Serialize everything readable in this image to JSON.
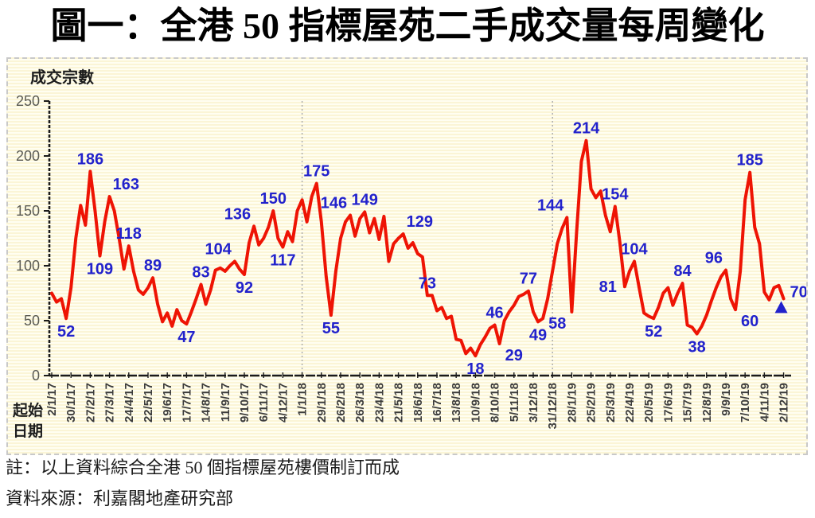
{
  "title": "圖一：全港 50 指標屋苑二手成交量每周變化",
  "notes": {
    "line1": "註：以上資料綜合全港 50 個指標屋苑樓價制訂而成",
    "line2": "資料來源：利嘉閣地產研究部"
  },
  "chart_data": {
    "type": "line",
    "title": "圖一：全港 50 指標屋苑二手成交量每周變化",
    "ylabel": "成交宗數",
    "xlabel": "起始日期",
    "xlabel_lines": [
      "起始",
      "日期"
    ],
    "ylim": [
      0,
      250
    ],
    "yticks": [
      0,
      50,
      100,
      150,
      200,
      250
    ],
    "grid": "off",
    "legend": "none",
    "x_weeks_per_tick": 4,
    "x_tick_labels": [
      "2/1/17",
      "30/1/17",
      "27/2/17",
      "27/3/17",
      "24/4/17",
      "22/5/17",
      "19/6/17",
      "17/7/17",
      "14/8/17",
      "11/9/17",
      "9/10/17",
      "6/11/17",
      "4/12/17",
      "1/1/18",
      "29/1/18",
      "26/2/18",
      "26/3/18",
      "23/4/18",
      "21/5/18",
      "18/6/18",
      "16/7/18",
      "13/8/18",
      "10/9/18",
      "8/10/18",
      "5/11/18",
      "3/12/18",
      "31/12/18",
      "28/1/19",
      "25/2/19",
      "25/3/19",
      "22/4/19",
      "20/5/19",
      "17/6/19",
      "15/7/19",
      "12/8/19",
      "9/9/19",
      "7/10/19",
      "4/11/19",
      "2/12/19"
    ],
    "year_divider_weeks": [
      52,
      104
    ],
    "values": [
      75,
      67,
      70,
      52,
      80,
      125,
      155,
      137,
      186,
      150,
      109,
      140,
      163,
      150,
      125,
      97,
      118,
      95,
      78,
      74,
      80,
      89,
      65,
      49,
      57,
      45,
      60,
      50,
      47,
      58,
      70,
      83,
      65,
      78,
      96,
      98,
      95,
      100,
      104,
      97,
      92,
      121,
      136,
      119,
      125,
      135,
      150,
      125,
      117,
      131,
      122,
      150,
      160,
      140,
      163,
      175,
      140,
      90,
      55,
      95,
      125,
      140,
      146,
      127,
      143,
      149,
      130,
      143,
      124,
      145,
      104,
      120,
      125,
      129,
      116,
      121,
      111,
      108,
      73,
      73,
      59,
      62,
      52,
      54,
      33,
      32,
      20,
      25,
      18,
      28,
      35,
      43,
      46,
      29,
      50,
      58,
      64,
      72,
      74,
      77,
      58,
      49,
      52,
      70,
      95,
      120,
      134,
      144,
      58,
      130,
      195,
      214,
      170,
      162,
      168,
      146,
      131,
      154,
      121,
      81,
      95,
      104,
      80,
      57,
      54,
      52,
      62,
      75,
      80,
      64,
      75,
      84,
      46,
      44,
      38,
      45,
      55,
      68,
      80,
      90,
      96,
      70,
      60,
      95,
      160,
      185,
      135,
      120,
      76,
      69,
      80,
      82,
      70
    ],
    "point_labels": [
      {
        "week": 3,
        "value": 52,
        "pos": "below"
      },
      {
        "week": 8,
        "value": 186,
        "pos": "above"
      },
      {
        "week": 10,
        "value": 109,
        "pos": "below"
      },
      {
        "week": 12,
        "value": 163,
        "pos": "above-right"
      },
      {
        "week": 16,
        "value": 118,
        "pos": "above"
      },
      {
        "week": 21,
        "value": 89,
        "pos": "above"
      },
      {
        "week": 28,
        "value": 47,
        "pos": "below"
      },
      {
        "week": 31,
        "value": 83,
        "pos": "above"
      },
      {
        "week": 38,
        "value": 104,
        "pos": "above-left"
      },
      {
        "week": 40,
        "value": 92,
        "pos": "below"
      },
      {
        "week": 42,
        "value": 136,
        "pos": "above-left"
      },
      {
        "week": 46,
        "value": 150,
        "pos": "above"
      },
      {
        "week": 48,
        "value": 117,
        "pos": "below"
      },
      {
        "week": 55,
        "value": 175,
        "pos": "above"
      },
      {
        "week": 58,
        "value": 55,
        "pos": "below"
      },
      {
        "week": 62,
        "value": 146,
        "pos": "above-left"
      },
      {
        "week": 65,
        "value": 149,
        "pos": "above"
      },
      {
        "week": 73,
        "value": 129,
        "pos": "above-right"
      },
      {
        "week": 78,
        "value": 73,
        "pos": "above"
      },
      {
        "week": 88,
        "value": 18,
        "pos": "below"
      },
      {
        "week": 92,
        "value": 46,
        "pos": "above"
      },
      {
        "week": 93,
        "value": 29,
        "pos": "below-right"
      },
      {
        "week": 99,
        "value": 77,
        "pos": "above"
      },
      {
        "week": 101,
        "value": 49,
        "pos": "below"
      },
      {
        "week": 107,
        "value": 144,
        "pos": "above-left"
      },
      {
        "week": 108,
        "value": 58,
        "pos": "below-left"
      },
      {
        "week": 111,
        "value": 214,
        "pos": "above"
      },
      {
        "week": 117,
        "value": 154,
        "pos": "above"
      },
      {
        "week": 119,
        "value": 81,
        "pos": "left"
      },
      {
        "week": 121,
        "value": 104,
        "pos": "above"
      },
      {
        "week": 125,
        "value": 52,
        "pos": "below"
      },
      {
        "week": 131,
        "value": 84,
        "pos": "above"
      },
      {
        "week": 134,
        "value": 38,
        "pos": "below"
      },
      {
        "week": 140,
        "value": 96,
        "pos": "above-left"
      },
      {
        "week": 142,
        "value": 60,
        "pos": "below-right"
      },
      {
        "week": 145,
        "value": 185,
        "pos": "above"
      },
      {
        "week": 152,
        "value": 70,
        "pos": "right"
      }
    ],
    "end_marker": {
      "week": 152,
      "value": 70,
      "shape": "triangle-up"
    },
    "colors": {
      "line": "#ee1404",
      "data_label": "#2222cc",
      "axis": "#1a1a1a",
      "tick_label": "#5a5a52",
      "x_tick_label": "#3c3c3c",
      "year_divider": "#a8a8a8",
      "plot_bg": "#fdf9dc"
    }
  }
}
